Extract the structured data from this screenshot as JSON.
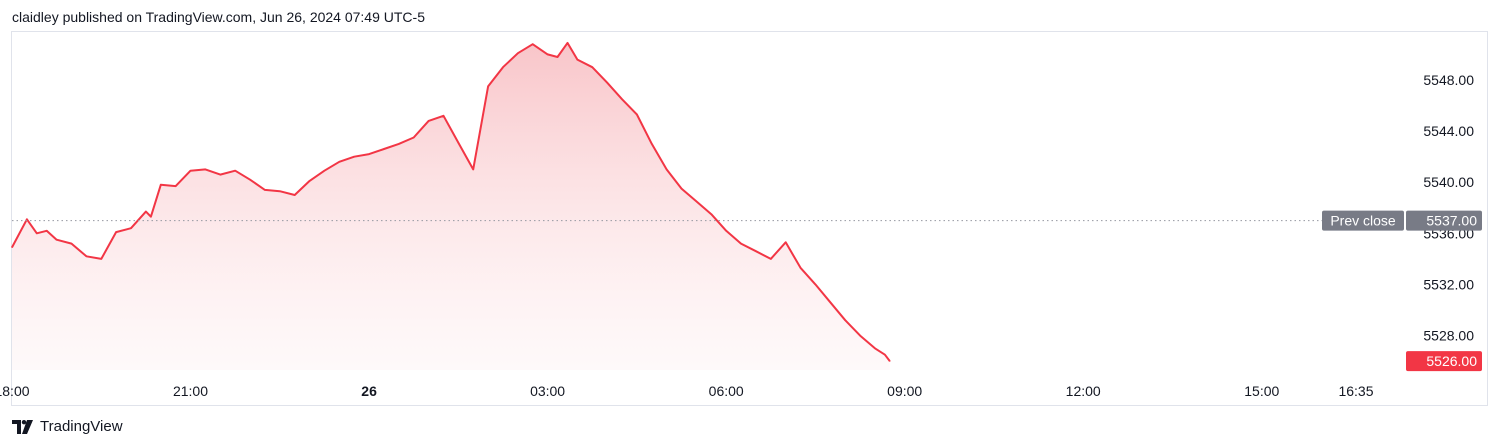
{
  "header": {
    "text": "claidley published on TradingView.com, Jun 26, 2024 07:49 UTC-5"
  },
  "footer": {
    "brand": "TradingView",
    "logo_icon": "tradingview-logo-icon"
  },
  "colors": {
    "line": "#f23645",
    "fill_top": "#f8c2c6",
    "grid_dotted": "#9598a1",
    "prev_close_badge": "#787b86",
    "last_badge": "#f23645",
    "border": "#e0e3eb"
  },
  "chart_data": {
    "type": "area",
    "title": "",
    "xlabel": "",
    "ylabel": "",
    "ylim": [
      5524.6,
      5551.6
    ],
    "xlim": [
      "2024-06-25 18:00",
      "2024-06-26 16:35"
    ],
    "y_ticks": [
      "5548.00",
      "5544.00",
      "5540.00",
      "5536.00",
      "5532.00",
      "5528.00"
    ],
    "x_ticks": [
      {
        "label": "18:00",
        "x": "2024-06-25 18:00",
        "bold": false
      },
      {
        "label": "21:00",
        "x": "2024-06-25 21:00",
        "bold": false
      },
      {
        "label": "26",
        "x": "2024-06-26 00:00",
        "bold": true
      },
      {
        "label": "03:00",
        "x": "2024-06-26 03:00",
        "bold": false
      },
      {
        "label": "06:00",
        "x": "2024-06-26 06:00",
        "bold": false
      },
      {
        "label": "09:00",
        "x": "2024-06-26 09:00",
        "bold": false
      },
      {
        "label": "12:00",
        "x": "2024-06-26 12:00",
        "bold": false
      },
      {
        "label": "15:00",
        "x": "2024-06-26 15:00",
        "bold": false
      },
      {
        "label": "16:35",
        "x": "2024-06-26 16:35",
        "bold": false
      }
    ],
    "prev_close": {
      "label": "Prev close",
      "value": 5537.0,
      "value_label": "5537.00"
    },
    "last_price": {
      "value": 5526.0,
      "value_label": "5526.00"
    },
    "grid": false,
    "legend": "none",
    "series": [
      {
        "x": [
          "2024-06-25 18:00",
          "2024-06-25 18:15",
          "2024-06-25 18:25",
          "2024-06-25 18:35",
          "2024-06-25 18:45",
          "2024-06-25 19:00",
          "2024-06-25 19:15",
          "2024-06-25 19:30",
          "2024-06-25 19:45",
          "2024-06-25 20:00",
          "2024-06-25 20:15",
          "2024-06-25 20:20",
          "2024-06-25 20:30",
          "2024-06-25 20:45",
          "2024-06-25 21:00",
          "2024-06-25 21:15",
          "2024-06-25 21:30",
          "2024-06-25 21:45",
          "2024-06-25 22:00",
          "2024-06-25 22:15",
          "2024-06-25 22:30",
          "2024-06-25 22:45",
          "2024-06-25 23:00",
          "2024-06-25 23:15",
          "2024-06-25 23:30",
          "2024-06-25 23:45",
          "2024-06-26 00:00",
          "2024-06-26 00:15",
          "2024-06-26 00:30",
          "2024-06-26 00:45",
          "2024-06-26 01:00",
          "2024-06-26 01:15",
          "2024-06-26 01:30",
          "2024-06-26 01:45",
          "2024-06-26 02:00",
          "2024-06-26 02:15",
          "2024-06-26 02:30",
          "2024-06-26 02:45",
          "2024-06-26 03:00",
          "2024-06-26 03:10",
          "2024-06-26 03:20",
          "2024-06-26 03:30",
          "2024-06-26 03:45",
          "2024-06-26 04:00",
          "2024-06-26 04:15",
          "2024-06-26 04:30",
          "2024-06-26 04:45",
          "2024-06-26 05:00",
          "2024-06-26 05:15",
          "2024-06-26 05:30",
          "2024-06-26 05:45",
          "2024-06-26 06:00",
          "2024-06-26 06:15",
          "2024-06-26 06:30",
          "2024-06-26 06:45",
          "2024-06-26 07:00",
          "2024-06-26 07:15",
          "2024-06-26 07:30",
          "2024-06-26 07:45",
          "2024-06-26 08:00",
          "2024-06-26 08:15",
          "2024-06-26 08:30",
          "2024-06-26 08:40",
          "2024-06-26 08:45"
        ],
        "y": [
          5534.9,
          5537.1,
          5536.0,
          5536.2,
          5535.5,
          5535.2,
          5534.2,
          5534.0,
          5536.1,
          5536.4,
          5537.7,
          5537.3,
          5539.8,
          5539.7,
          5540.9,
          5541.0,
          5540.6,
          5540.9,
          5540.2,
          5539.4,
          5539.3,
          5539.0,
          5540.1,
          5540.9,
          5541.6,
          5542.0,
          5542.2,
          5542.6,
          5543.0,
          5543.5,
          5544.8,
          5545.2,
          5543.1,
          5541.0,
          5547.5,
          5549.0,
          5550.1,
          5550.8,
          5550.0,
          5549.8,
          5550.9,
          5549.6,
          5549.0,
          5547.8,
          5546.5,
          5545.3,
          5543.0,
          5541.0,
          5539.5,
          5538.5,
          5537.5,
          5536.2,
          5535.2,
          5534.6,
          5534.0,
          5535.3,
          5533.3,
          5532.0,
          5530.6,
          5529.2,
          5528.0,
          5527.0,
          5526.5,
          5526.0
        ]
      }
    ]
  }
}
